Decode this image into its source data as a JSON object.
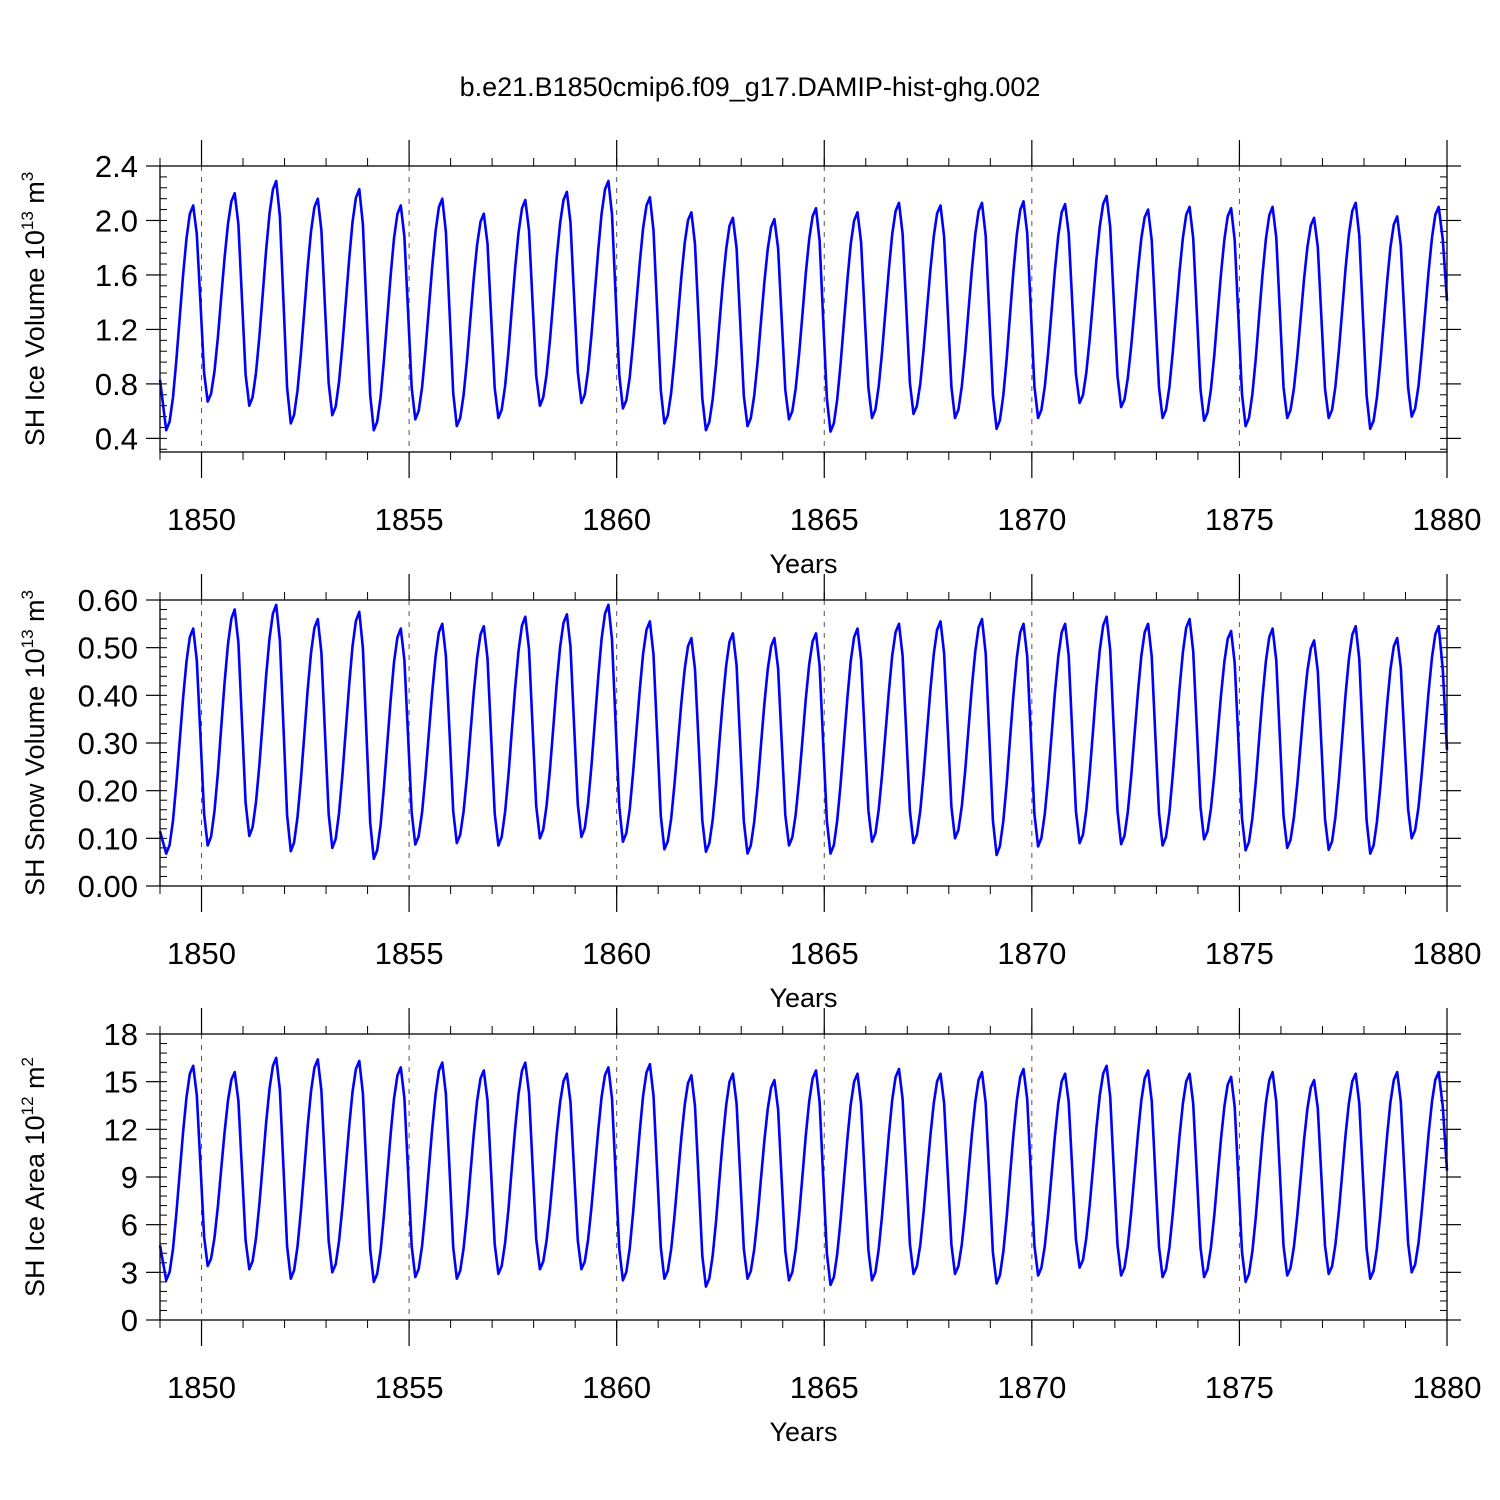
{
  "title": "b.e21.B1850cmip6.f09_g17.DAMIP-hist-ghg.002",
  "series_color": "#0000ff",
  "chart_data": [
    {
      "type": "line",
      "ylabel_main": "SH Ice Volume 10",
      "ylabel_exp": "13",
      "ylabel_unit": " m",
      "ylabel_unit_exp": "3",
      "xlabel": "Years",
      "xlim": [
        1849,
        1880
      ],
      "ylim": [
        0.3,
        2.4
      ],
      "yticks": [
        0.4,
        0.8,
        1.2,
        1.6,
        2.0,
        2.4
      ],
      "ytick_labels": [
        "0.4",
        "0.8",
        "1.2",
        "1.6",
        "2.0",
        "2.4"
      ],
      "xticks": [
        1850,
        1855,
        1860,
        1865,
        1870,
        1875,
        1880
      ],
      "xtick_labels": [
        "1850",
        "1855",
        "1860",
        "1865",
        "1870",
        "1875",
        "1880"
      ],
      "series_start": 1849.0,
      "start_value": 0.83,
      "maxima": [
        2.11,
        2.2,
        2.29,
        2.16,
        2.23,
        2.11,
        2.16,
        2.05,
        2.15,
        2.21,
        2.29,
        2.17,
        2.06,
        2.02,
        2.01,
        2.09,
        2.06,
        2.13,
        2.11,
        2.13,
        2.14,
        2.12,
        2.18,
        2.08,
        2.1,
        2.09,
        2.1,
        2.02,
        2.13,
        2.03,
        2.1
      ],
      "minima": [
        0.46,
        0.67,
        0.64,
        0.51,
        0.57,
        0.46,
        0.54,
        0.49,
        0.55,
        0.64,
        0.66,
        0.62,
        0.51,
        0.46,
        0.49,
        0.54,
        0.45,
        0.55,
        0.58,
        0.55,
        0.47,
        0.55,
        0.66,
        0.63,
        0.55,
        0.53,
        0.49,
        0.55,
        0.55,
        0.47,
        0.56
      ],
      "end_value": 1.41
    },
    {
      "type": "line",
      "ylabel_main": "SH Snow Volume 10",
      "ylabel_exp": "13",
      "ylabel_unit": " m",
      "ylabel_unit_exp": "3",
      "xlabel": "Years",
      "xlim": [
        1849,
        1880
      ],
      "ylim": [
        0.0,
        0.6
      ],
      "yticks": [
        0.0,
        0.1,
        0.2,
        0.3,
        0.4,
        0.5,
        0.6
      ],
      "ytick_labels": [
        "0.00",
        "0.10",
        "0.20",
        "0.30",
        "0.40",
        "0.50",
        "0.60"
      ],
      "xticks": [
        1850,
        1855,
        1860,
        1865,
        1870,
        1875,
        1880
      ],
      "xtick_labels": [
        "1850",
        "1855",
        "1860",
        "1865",
        "1870",
        "1875",
        "1880"
      ],
      "series_start": 1849.0,
      "start_value": 0.115,
      "maxima": [
        0.54,
        0.58,
        0.59,
        0.56,
        0.575,
        0.54,
        0.55,
        0.545,
        0.565,
        0.57,
        0.59,
        0.555,
        0.52,
        0.53,
        0.52,
        0.53,
        0.54,
        0.55,
        0.555,
        0.56,
        0.55,
        0.55,
        0.565,
        0.55,
        0.56,
        0.535,
        0.54,
        0.515,
        0.545,
        0.52,
        0.545
      ],
      "minima": [
        0.068,
        0.085,
        0.105,
        0.073,
        0.08,
        0.057,
        0.087,
        0.09,
        0.085,
        0.1,
        0.103,
        0.093,
        0.077,
        0.072,
        0.068,
        0.085,
        0.068,
        0.093,
        0.09,
        0.1,
        0.065,
        0.083,
        0.09,
        0.088,
        0.085,
        0.098,
        0.075,
        0.08,
        0.076,
        0.068,
        0.1
      ],
      "end_value": 0.285
    },
    {
      "type": "line",
      "ylabel_main": "SH Ice Area 10",
      "ylabel_exp": "12",
      "ylabel_unit": " m",
      "ylabel_unit_exp": "2",
      "xlabel": "Years",
      "xlim": [
        1849,
        1880
      ],
      "ylim": [
        0,
        18
      ],
      "yticks": [
        0,
        3,
        6,
        9,
        12,
        15,
        18
      ],
      "ytick_labels": [
        "0",
        "3",
        "6",
        "9",
        "12",
        "15",
        "18"
      ],
      "xticks": [
        1850,
        1855,
        1860,
        1865,
        1870,
        1875,
        1880
      ],
      "xtick_labels": [
        "1850",
        "1855",
        "1860",
        "1865",
        "1870",
        "1875",
        "1880"
      ],
      "series_start": 1849.0,
      "start_value": 4.7,
      "maxima": [
        16.0,
        15.6,
        16.5,
        16.4,
        16.3,
        15.9,
        16.2,
        15.7,
        16.2,
        15.5,
        15.9,
        16.1,
        15.4,
        15.5,
        15.1,
        15.7,
        15.5,
        15.8,
        15.5,
        15.6,
        15.8,
        15.5,
        16.0,
        15.7,
        15.5,
        15.3,
        15.6,
        15.1,
        15.5,
        15.6,
        15.6
      ],
      "minima": [
        2.5,
        3.4,
        3.2,
        2.6,
        3.0,
        2.4,
        2.7,
        2.6,
        2.9,
        3.2,
        3.2,
        2.5,
        2.6,
        2.1,
        2.6,
        2.5,
        2.2,
        2.5,
        2.9,
        2.9,
        2.3,
        2.8,
        3.3,
        2.8,
        2.7,
        2.7,
        2.4,
        2.8,
        2.9,
        2.6,
        3.0
      ],
      "end_value": 9.4
    }
  ]
}
